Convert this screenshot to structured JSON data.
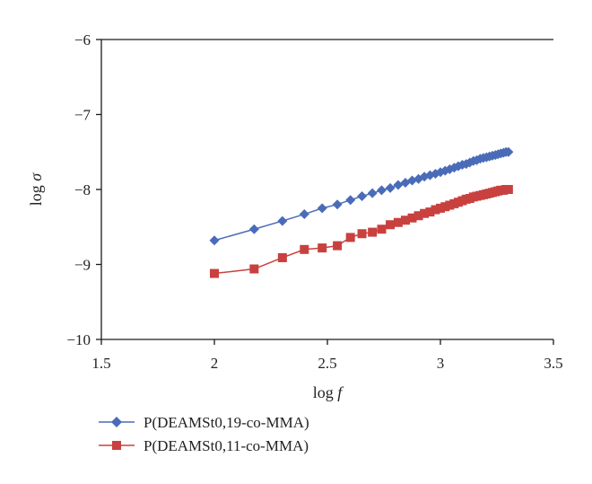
{
  "chart_data": {
    "type": "line",
    "xlabel": "log f",
    "ylabel": "log σ",
    "xlim": [
      1.5,
      3.5
    ],
    "ylim": [
      -10,
      -6
    ],
    "x_ticks": [
      "1.5",
      "2",
      "2.5",
      "3",
      "3.5"
    ],
    "y_ticks": [
      "−6",
      "−7",
      "−8",
      "−9",
      "−10"
    ],
    "grid": false,
    "legend_position": "bottom-left",
    "series": [
      {
        "name": "P(DEAMSt0,19-co-MMA)",
        "color": "#4a6cb8",
        "marker": "diamond",
        "points": [
          [
            2.0,
            -8.68
          ],
          [
            2.176,
            -8.53
          ],
          [
            2.301,
            -8.42
          ],
          [
            2.398,
            -8.33
          ],
          [
            2.477,
            -8.25
          ],
          [
            2.544,
            -8.2
          ],
          [
            2.602,
            -8.14
          ],
          [
            2.653,
            -8.09
          ],
          [
            2.699,
            -8.05
          ],
          [
            2.74,
            -8.01
          ],
          [
            2.778,
            -7.98
          ],
          [
            2.813,
            -7.94
          ],
          [
            2.845,
            -7.91
          ],
          [
            2.875,
            -7.88
          ],
          [
            2.903,
            -7.86
          ],
          [
            2.929,
            -7.83
          ],
          [
            2.954,
            -7.81
          ],
          [
            2.978,
            -7.79
          ],
          [
            3.0,
            -7.77
          ],
          [
            3.021,
            -7.75
          ],
          [
            3.041,
            -7.73
          ],
          [
            3.061,
            -7.71
          ],
          [
            3.079,
            -7.69
          ],
          [
            3.097,
            -7.67
          ],
          [
            3.114,
            -7.66
          ],
          [
            3.13,
            -7.64
          ],
          [
            3.146,
            -7.62
          ],
          [
            3.161,
            -7.61
          ],
          [
            3.176,
            -7.59
          ],
          [
            3.19,
            -7.58
          ],
          [
            3.204,
            -7.57
          ],
          [
            3.217,
            -7.56
          ],
          [
            3.23,
            -7.55
          ],
          [
            3.243,
            -7.54
          ],
          [
            3.255,
            -7.53
          ],
          [
            3.267,
            -7.52
          ],
          [
            3.279,
            -7.51
          ],
          [
            3.29,
            -7.5
          ],
          [
            3.301,
            -7.5
          ]
        ]
      },
      {
        "name": "P(DEAMSt0,11-co-MMA)",
        "color": "#c8413f",
        "marker": "square",
        "points": [
          [
            2.0,
            -9.12
          ],
          [
            2.176,
            -9.06
          ],
          [
            2.301,
            -8.91
          ],
          [
            2.398,
            -8.8
          ],
          [
            2.477,
            -8.78
          ],
          [
            2.544,
            -8.75
          ],
          [
            2.602,
            -8.64
          ],
          [
            2.653,
            -8.59
          ],
          [
            2.699,
            -8.57
          ],
          [
            2.74,
            -8.53
          ],
          [
            2.778,
            -8.47
          ],
          [
            2.813,
            -8.44
          ],
          [
            2.845,
            -8.41
          ],
          [
            2.875,
            -8.38
          ],
          [
            2.903,
            -8.35
          ],
          [
            2.929,
            -8.32
          ],
          [
            2.954,
            -8.3
          ],
          [
            2.978,
            -8.27
          ],
          [
            3.0,
            -8.25
          ],
          [
            3.021,
            -8.23
          ],
          [
            3.041,
            -8.21
          ],
          [
            3.061,
            -8.19
          ],
          [
            3.079,
            -8.17
          ],
          [
            3.097,
            -8.15
          ],
          [
            3.114,
            -8.13
          ],
          [
            3.13,
            -8.12
          ],
          [
            3.146,
            -8.1
          ],
          [
            3.161,
            -8.09
          ],
          [
            3.176,
            -8.08
          ],
          [
            3.19,
            -8.07
          ],
          [
            3.204,
            -8.06
          ],
          [
            3.217,
            -8.05
          ],
          [
            3.23,
            -8.04
          ],
          [
            3.243,
            -8.03
          ],
          [
            3.255,
            -8.02
          ],
          [
            3.267,
            -8.01
          ],
          [
            3.279,
            -8.01
          ],
          [
            3.29,
            -8.0
          ],
          [
            3.301,
            -8.0
          ]
        ]
      }
    ]
  }
}
